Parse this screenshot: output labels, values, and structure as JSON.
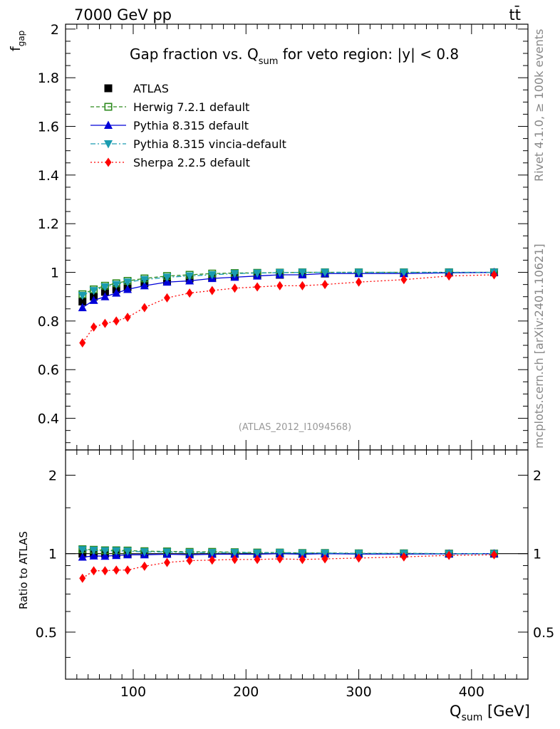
{
  "header": {
    "left": "7000 GeV pp",
    "right": "tt̄"
  },
  "side_labels": {
    "rivet": "Rivet 4.1.0, ≥ 100k events",
    "mcplots": "mcplots.cern.ch [arXiv:2401.10621]"
  },
  "chart_data": {
    "type": "scatter",
    "title_main": "Gap fraction vs. Q",
    "title_sub": "sum",
    "title_rest": " for veto region: |y| < 0.8",
    "watermark": "(ATLAS_2012_I1094568)",
    "xlabel_main": "Q",
    "xlabel_sub": "sum",
    "xlabel_rest": " [GeV]",
    "ylabel_main": "f",
    "ylabel_sub": "gap",
    "ratio_ylabel": "Ratio to ATLAS",
    "xlim": [
      40,
      450
    ],
    "ylim": [
      0.27,
      2.02
    ],
    "ratio_ylim": [
      0.33,
      2.5
    ],
    "x_ticks": [
      "100",
      "200",
      "300",
      "400"
    ],
    "y_ticks": [
      "0.4",
      "0.6",
      "0.8",
      "1",
      "1.2",
      "1.4",
      "1.6",
      "1.8",
      "2"
    ],
    "ratio_ticks": [
      "0.5",
      "1",
      "2"
    ],
    "x": [
      55,
      65,
      75,
      85,
      95,
      110,
      130,
      150,
      170,
      190,
      210,
      230,
      250,
      270,
      300,
      340,
      380,
      420
    ],
    "series": [
      {
        "name": "ATLAS",
        "color": "#000000",
        "marker": "square",
        "line": "none",
        "values": [
          0.88,
          0.9,
          0.92,
          0.93,
          0.94,
          0.955,
          0.965,
          0.975,
          0.98,
          0.985,
          0.99,
          0.99,
          0.995,
          0.995,
          0.998,
          0.998,
          1.0,
          1.0
        ],
        "ratio": [
          1,
          1,
          1,
          1,
          1,
          1,
          1,
          1,
          1,
          1,
          1,
          1,
          1,
          1,
          1,
          1,
          1,
          1
        ]
      },
      {
        "name": "Herwig 7.2.1 default",
        "color": "#2d8a1e",
        "marker": "open-square",
        "line": "dashed",
        "values": [
          0.91,
          0.93,
          0.945,
          0.955,
          0.965,
          0.975,
          0.985,
          0.99,
          0.995,
          0.997,
          0.998,
          0.999,
          1.0,
          1.0,
          1.0,
          1.0,
          1.0,
          1.0
        ],
        "ratio": [
          1.04,
          1.035,
          1.03,
          1.03,
          1.028,
          1.022,
          1.02,
          1.016,
          1.016,
          1.013,
          1.01,
          1.01,
          1.006,
          1.006,
          1.003,
          1.003,
          1.0,
          1.0
        ]
      },
      {
        "name": "Pythia 8.315 default",
        "color": "#0000d8",
        "marker": "triangle-up",
        "line": "solid",
        "values": [
          0.855,
          0.885,
          0.9,
          0.915,
          0.93,
          0.945,
          0.96,
          0.965,
          0.975,
          0.98,
          0.985,
          0.99,
          0.99,
          0.995,
          0.995,
          0.995,
          0.998,
          1.0
        ],
        "ratio": [
          0.97,
          0.98,
          0.978,
          0.984,
          0.99,
          0.99,
          0.995,
          0.99,
          0.995,
          0.995,
          0.995,
          1.0,
          0.995,
          1.0,
          0.997,
          0.997,
          0.998,
          1.0
        ]
      },
      {
        "name": "Pythia 8.315 vincia-default",
        "color": "#1a9cb0",
        "marker": "triangle-down",
        "line": "dashdot",
        "values": [
          0.905,
          0.925,
          0.94,
          0.95,
          0.96,
          0.97,
          0.98,
          0.985,
          0.99,
          0.995,
          0.997,
          0.999,
          1.0,
          1.0,
          1.0,
          1.0,
          1.0,
          1.0
        ],
        "ratio": [
          1.035,
          1.03,
          1.025,
          1.025,
          1.022,
          1.016,
          1.015,
          1.01,
          1.01,
          1.01,
          1.007,
          1.009,
          1.005,
          1.005,
          1.002,
          1.002,
          1.0,
          1.0
        ]
      },
      {
        "name": "Sherpa 2.2.5 default",
        "color": "#ff0000",
        "marker": "diamond",
        "line": "dotted",
        "values": [
          0.71,
          0.775,
          0.79,
          0.8,
          0.815,
          0.855,
          0.895,
          0.915,
          0.925,
          0.935,
          0.94,
          0.945,
          0.945,
          0.95,
          0.96,
          0.97,
          0.985,
          0.99
        ],
        "ratio": [
          0.805,
          0.86,
          0.86,
          0.865,
          0.865,
          0.895,
          0.925,
          0.94,
          0.945,
          0.95,
          0.95,
          0.955,
          0.95,
          0.955,
          0.962,
          0.972,
          0.985,
          0.99
        ]
      }
    ]
  }
}
